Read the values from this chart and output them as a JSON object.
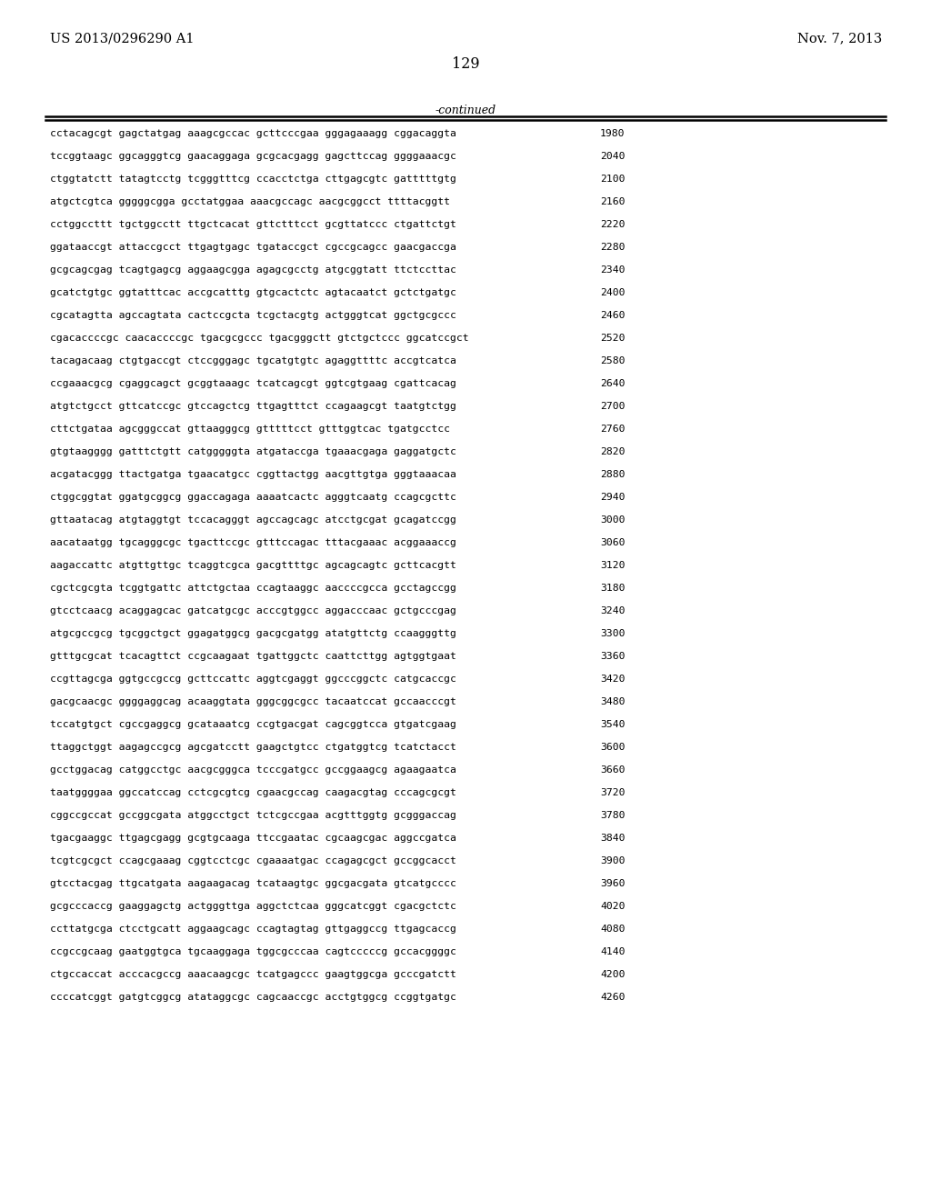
{
  "header_left": "US 2013/0296290 A1",
  "header_right": "Nov. 7, 2013",
  "page_number": "129",
  "continued_label": "-continued",
  "background_color": "#ffffff",
  "text_color": "#000000",
  "font_size_header": 10.5,
  "font_size_page": 11.5,
  "font_size_body": 8.2,
  "font_size_continued": 9.0,
  "sequence_lines": [
    [
      "cctacagcgt gagctatgag aaagcgccac gcttcccgaa gggagaaagg cggacaggta",
      "1980"
    ],
    [
      "tccggtaagc ggcagggtcg gaacaggaga gcgcacgagg gagcttccag ggggaaacgc",
      "2040"
    ],
    [
      "ctggtatctt tatagtcctg tcgggtttcg ccacctctga cttgagcgtc gatttttgtg",
      "2100"
    ],
    [
      "atgctcgtca gggggcgga gcctatggaa aaacgccagc aacgcggcct ttttacggtt",
      "2160"
    ],
    [
      "cctggccttt tgctggcctt ttgctcacat gttctttcct gcgttatccc ctgattctgt",
      "2220"
    ],
    [
      "ggataaccgt attaccgcct ttgagtgagc tgataccgct cgccgcagcc gaacgaccga",
      "2280"
    ],
    [
      "gcgcagcgag tcagtgagcg aggaagcgga agagcgcctg atgcggtatt ttctccttac",
      "2340"
    ],
    [
      "gcatctgtgc ggtatttcac accgcatttg gtgcactctc agtacaatct gctctgatgc",
      "2400"
    ],
    [
      "cgcatagtta agccagtata cactccgcta tcgctacgtg actgggtcat ggctgcgccc",
      "2460"
    ],
    [
      "cgacaccccgc caacaccccgc tgacgcgccc tgacgggctt gtctgctccc ggcatccgct",
      "2520"
    ],
    [
      "tacagacaag ctgtgaccgt ctccgggagc tgcatgtgtc agaggttttc accgtcatca",
      "2580"
    ],
    [
      "ccgaaacgcg cgaggcagct gcggtaaagc tcatcagcgt ggtcgtgaag cgattcacag",
      "2640"
    ],
    [
      "atgtctgcct gttcatccgc gtccagctcg ttgagtttct ccagaagcgt taatgtctgg",
      "2700"
    ],
    [
      "cttctgataa agcgggccat gttaagggcg gtttttcct gtttggtcac tgatgcctcc",
      "2760"
    ],
    [
      "gtgtaagggg gatttctgtt catgggggta atgataccga tgaaacgaga gaggatgctc",
      "2820"
    ],
    [
      "acgatacggg ttactgatga tgaacatgcc cggttactgg aacgttgtga gggtaaacaa",
      "2880"
    ],
    [
      "ctggcggtat ggatgcggcg ggaccagaga aaaatcactc agggtcaatg ccagcgcttc",
      "2940"
    ],
    [
      "gttaatacag atgtaggtgt tccacagggt agccagcagc atcctgcgat gcagatccgg",
      "3000"
    ],
    [
      "aacataatgg tgcagggcgc tgacttccgc gtttccagac tttacgaaac acggaaaccg",
      "3060"
    ],
    [
      "aagaccattc atgttgttgc tcaggtcgca gacgttttgc agcagcagtc gcttcacgtt",
      "3120"
    ],
    [
      "cgctcgcgta tcggtgattc attctgctaa ccagtaaggc aaccccgcca gcctagccgg",
      "3180"
    ],
    [
      "gtcctcaacg acaggagcac gatcatgcgc acccgtggcc aggacccaac gctgcccgag",
      "3240"
    ],
    [
      "atgcgccgcg tgcggctgct ggagatggcg gacgcgatgg atatgttctg ccaagggttg",
      "3300"
    ],
    [
      "gtttgcgcat tcacagttct ccgcaagaat tgattggctc caattcttgg agtggtgaat",
      "3360"
    ],
    [
      "ccgttagcga ggtgccgccg gcttccattc aggtcgaggt ggcccggctc catgcaccgc",
      "3420"
    ],
    [
      "gacgcaacgc ggggaggcag acaaggtata gggcggcgcc tacaatccat gccaacccgt",
      "3480"
    ],
    [
      "tccatgtgct cgccgaggcg gcataaatcg ccgtgacgat cagcggtcca gtgatcgaag",
      "3540"
    ],
    [
      "ttaggctggt aagagccgcg agcgatcctt gaagctgtcc ctgatggtcg tcatctacct",
      "3600"
    ],
    [
      "gcctggacag catggcctgc aacgcgggca tcccgatgcc gccggaagcg agaagaatca",
      "3660"
    ],
    [
      "taatggggaa ggccatccag cctcgcgtcg cgaacgccag caagacgtag cccagcgcgt",
      "3720"
    ],
    [
      "cggccgccat gccggcgata atggcctgct tctcgccgaa acgtttggtg gcgggaccag",
      "3780"
    ],
    [
      "tgacgaaggc ttgagcgagg gcgtgcaaga ttccgaatac cgcaagcgac aggccgatca",
      "3840"
    ],
    [
      "tcgtcgcgct ccagcgaaag cggtcctcgc cgaaaatgac ccagagcgct gccggcacct",
      "3900"
    ],
    [
      "gtcctacgag ttgcatgata aagaagacag tcataagtgc ggcgacgata gtcatgcccc",
      "3960"
    ],
    [
      "gcgcccaccg gaaggagctg actgggttga aggctctcaa gggcatcggt cgacgctctc",
      "4020"
    ],
    [
      "ccttatgcga ctcctgcatt aggaagcagc ccagtagtag gttgaggccg ttgagcaccg",
      "4080"
    ],
    [
      "ccgccgcaag gaatggtgca tgcaaggaga tggcgcccaa cagtcccccg gccacggggc",
      "4140"
    ],
    [
      "ctgccaccat acccacgccg aaacaagcgc tcatgagccc gaagtggcga gcccgatctt",
      "4200"
    ],
    [
      "ccccatcggt gatgtcggcg atataggcgc cagcaaccgc acctgtggcg ccggtgatgc",
      "4260"
    ]
  ]
}
